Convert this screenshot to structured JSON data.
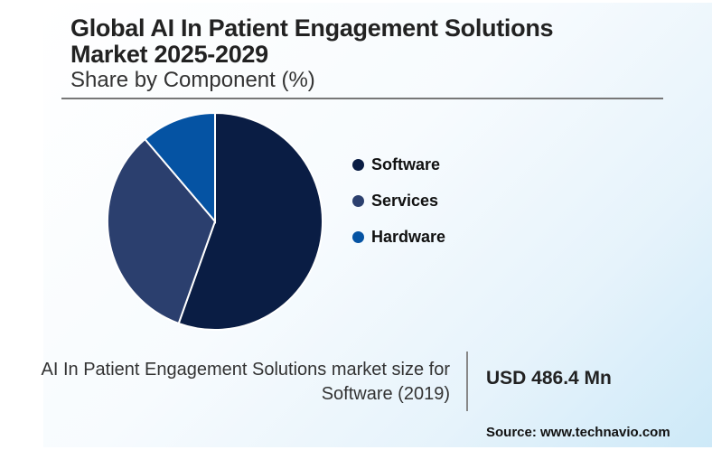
{
  "header": {
    "title_line1": "Global AI In Patient Engagement Solutions",
    "title_line2": "Market 2025-2029",
    "subtitle": "Share by Component (%)"
  },
  "chart_data": {
    "type": "pie",
    "title": "Global AI In Patient Engagement Solutions Market 2025-2029",
    "subtitle": "Share by Component (%)",
    "categories": [
      "Software",
      "Services",
      "Hardware"
    ],
    "values": [
      55.5,
      33.2,
      11.3
    ],
    "colors": [
      "#0a1d44",
      "#2b3f6e",
      "#0553a3"
    ],
    "legend_position": "right"
  },
  "footer": {
    "description_line1": "AI In Patient Engagement Solutions market size for",
    "description_line2": "Software (2019)",
    "value": "USD 486.4 Mn",
    "source": "Source: www.technavio.com"
  }
}
